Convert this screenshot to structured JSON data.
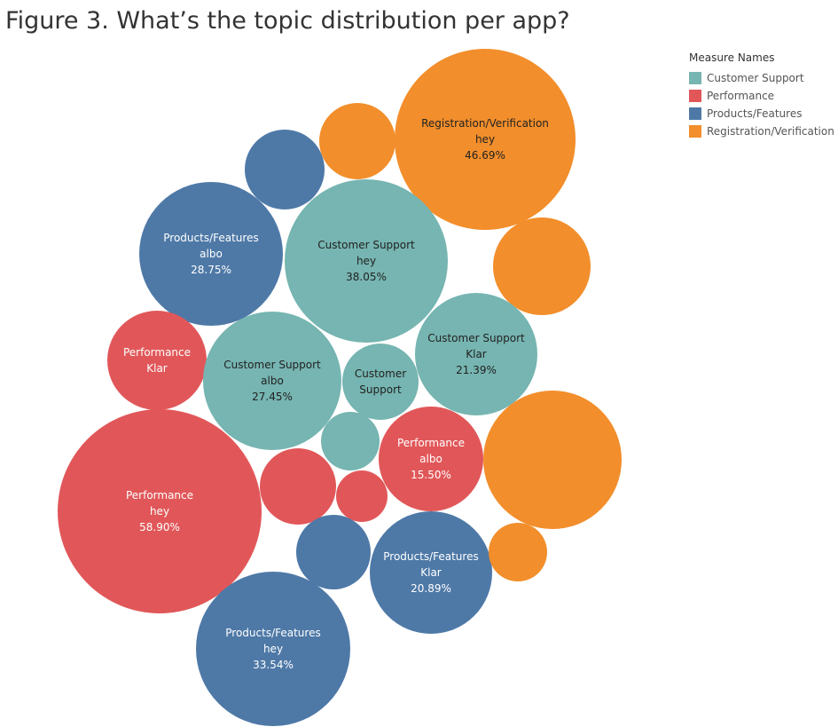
{
  "chart_data": {
    "type": "bubble",
    "title": "Figure 3. What’s the topic distribution per app?",
    "legend": {
      "title": "Measure Names",
      "placement": "top-right",
      "items": [
        {
          "name": "Customer Support",
          "color": "#76b5b1"
        },
        {
          "name": "Performance",
          "color": "#e15759"
        },
        {
          "name": "Products/Features",
          "color": "#4e79a7"
        },
        {
          "name": "Registration/Verification",
          "color": "#f28e2b"
        }
      ]
    },
    "bubbles": [
      {
        "measure": "Registration/Verification",
        "app": "hey",
        "value": "46.69%",
        "label_lines": [
          "Registration/Verification",
          "hey",
          "46.69%"
        ]
      },
      {
        "measure": "Registration/Verification",
        "app": "",
        "value": "",
        "label_lines": []
      },
      {
        "measure": "Products/Features",
        "app": "",
        "value": "",
        "label_lines": []
      },
      {
        "measure": "Products/Features",
        "app": "albo",
        "value": "28.75%",
        "label_lines": [
          "Products/Features",
          "albo",
          "28.75%"
        ]
      },
      {
        "measure": "Customer Support",
        "app": "hey",
        "value": "38.05%",
        "label_lines": [
          "Customer Support",
          "hey",
          "38.05%"
        ]
      },
      {
        "measure": "Registration/Verification",
        "app": "",
        "value": "",
        "label_lines": []
      },
      {
        "measure": "Performance",
        "app": "Klar",
        "value": "",
        "label_lines": [
          "Performance",
          "Klar"
        ]
      },
      {
        "measure": "Customer Support",
        "app": "albo",
        "value": "27.45%",
        "label_lines": [
          "Customer Support",
          "albo",
          "27.45%"
        ]
      },
      {
        "measure": "Customer Support",
        "app": "",
        "value": "",
        "label_lines": [
          "Customer",
          "Support"
        ]
      },
      {
        "measure": "Customer Support",
        "app": "Klar",
        "value": "21.39%",
        "label_lines": [
          "Customer Support",
          "Klar",
          "21.39%"
        ]
      },
      {
        "measure": "Customer Support",
        "app": "",
        "value": "",
        "label_lines": []
      },
      {
        "measure": "Performance",
        "app": "albo",
        "value": "15.50%",
        "label_lines": [
          "Performance",
          "albo",
          "15.50%"
        ]
      },
      {
        "measure": "Registration/Verification",
        "app": "",
        "value": "",
        "label_lines": []
      },
      {
        "measure": "Performance",
        "app": "",
        "value": "",
        "label_lines": []
      },
      {
        "measure": "Performance",
        "app": "",
        "value": "",
        "label_lines": []
      },
      {
        "measure": "Performance",
        "app": "hey",
        "value": "58.90%",
        "label_lines": [
          "Performance",
          "hey",
          "58.90%"
        ]
      },
      {
        "measure": "Products/Features",
        "app": "",
        "value": "",
        "label_lines": []
      },
      {
        "measure": "Products/Features",
        "app": "Klar",
        "value": "20.89%",
        "label_lines": [
          "Products/Features",
          "Klar",
          "20.89%"
        ]
      },
      {
        "measure": "Registration/Verification",
        "app": "",
        "value": "",
        "label_lines": []
      },
      {
        "measure": "Products/Features",
        "app": "hey",
        "value": "33.54%",
        "label_lines": [
          "Products/Features",
          "hey",
          "33.54%"
        ]
      }
    ]
  }
}
